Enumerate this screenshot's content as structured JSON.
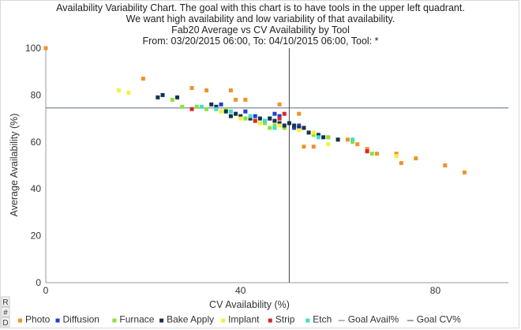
{
  "chart_data": {
    "type": "scatter",
    "title_lines": [
      "Availability Variability Chart. The goal with this chart is to have tools in the upper left quadrant.",
      "We want high availability and low variability of that availability.",
      "Fab20 Average vs CV Availability by Tool",
      "From: 03/20/2015 06:00, To: 04/10/2015 06:00, Tool: *"
    ],
    "xlabel": "CV Availability (%)",
    "ylabel": "Average Availability (%)",
    "xlim": [
      0,
      95
    ],
    "ylim": [
      0,
      100
    ],
    "x_ticks": [
      0,
      40,
      80
    ],
    "y_ticks": [
      0,
      20,
      40,
      60,
      80,
      100
    ],
    "grid": false,
    "legend_position": "bottom",
    "goal_avail": 74.5,
    "goal_cv": 50,
    "goal_avail_color": "#5b6e8a",
    "goal_cv_color": "#444444",
    "series": [
      {
        "name": "Photo",
        "color": "#f0922b",
        "points": [
          [
            0,
            100
          ],
          [
            20,
            87
          ],
          [
            30,
            83
          ],
          [
            33,
            82
          ],
          [
            38,
            82
          ],
          [
            39,
            78
          ],
          [
            41,
            78
          ],
          [
            48,
            76
          ],
          [
            52,
            72
          ],
          [
            53,
            58
          ],
          [
            55,
            58
          ],
          [
            58,
            62
          ],
          [
            60,
            61
          ],
          [
            62,
            61
          ],
          [
            64,
            59
          ],
          [
            66,
            57
          ],
          [
            68,
            55
          ],
          [
            72,
            55
          ],
          [
            73,
            51
          ],
          [
            76,
            53
          ],
          [
            82,
            50
          ],
          [
            86,
            47
          ],
          [
            44,
            68
          ],
          [
            49,
            66
          ]
        ]
      },
      {
        "name": "Diffusion",
        "color": "#1f3fcf",
        "points": [
          [
            36,
            76
          ],
          [
            41,
            73
          ],
          [
            43,
            71
          ],
          [
            46,
            70
          ],
          [
            47,
            72
          ],
          [
            48,
            71
          ],
          [
            50,
            68
          ],
          [
            51,
            66
          ],
          [
            52,
            67
          ]
        ]
      },
      {
        "name": "Furnace",
        "color": "#8de03a",
        "points": [
          [
            26,
            78
          ],
          [
            28,
            75
          ],
          [
            31,
            75
          ],
          [
            33,
            74
          ],
          [
            37,
            74
          ],
          [
            39,
            72
          ],
          [
            41,
            70
          ],
          [
            43,
            69
          ],
          [
            45,
            68
          ],
          [
            46,
            66
          ],
          [
            47,
            67
          ],
          [
            49,
            66
          ],
          [
            55,
            63
          ],
          [
            58,
            62
          ],
          [
            63,
            60
          ],
          [
            67,
            55
          ]
        ]
      },
      {
        "name": "Bake Apply",
        "color": "#16324f",
        "points": [
          [
            23,
            79
          ],
          [
            24,
            80
          ],
          [
            27,
            79
          ],
          [
            34,
            76
          ],
          [
            35,
            75
          ],
          [
            37,
            73
          ],
          [
            38,
            71
          ],
          [
            39,
            72
          ],
          [
            40,
            71
          ],
          [
            42,
            70
          ],
          [
            44,
            70
          ],
          [
            45,
            69
          ],
          [
            46,
            70
          ],
          [
            47,
            69
          ],
          [
            48,
            68
          ],
          [
            49,
            67
          ],
          [
            50,
            68
          ],
          [
            51,
            67
          ],
          [
            52,
            66
          ],
          [
            53,
            66
          ],
          [
            54,
            64
          ],
          [
            56,
            63
          ],
          [
            57,
            62
          ],
          [
            60,
            61
          ]
        ]
      },
      {
        "name": "Implant",
        "color": "#f5f03a",
        "points": [
          [
            15,
            82
          ],
          [
            17,
            81
          ],
          [
            36,
            73
          ],
          [
            40,
            70
          ],
          [
            44,
            68
          ],
          [
            48,
            67
          ],
          [
            52,
            65
          ],
          [
            55,
            64
          ],
          [
            58,
            59
          ],
          [
            72,
            54
          ]
        ]
      },
      {
        "name": "Strip",
        "color": "#d9262c",
        "points": [
          [
            30,
            74
          ],
          [
            43,
            69
          ],
          [
            48,
            70
          ],
          [
            49,
            72
          ],
          [
            66,
            56
          ]
        ]
      },
      {
        "name": "Etch",
        "color": "#3ee0c6",
        "points": [
          [
            32,
            75
          ],
          [
            35,
            74
          ],
          [
            38,
            73
          ],
          [
            42,
            71
          ],
          [
            45,
            69
          ],
          [
            47,
            66
          ],
          [
            56,
            62
          ],
          [
            63,
            61
          ]
        ]
      }
    ],
    "legend_lines": [
      "Goal Avail%",
      "Goal CV%"
    ]
  },
  "side_buttons": [
    "R",
    "#",
    "D"
  ]
}
